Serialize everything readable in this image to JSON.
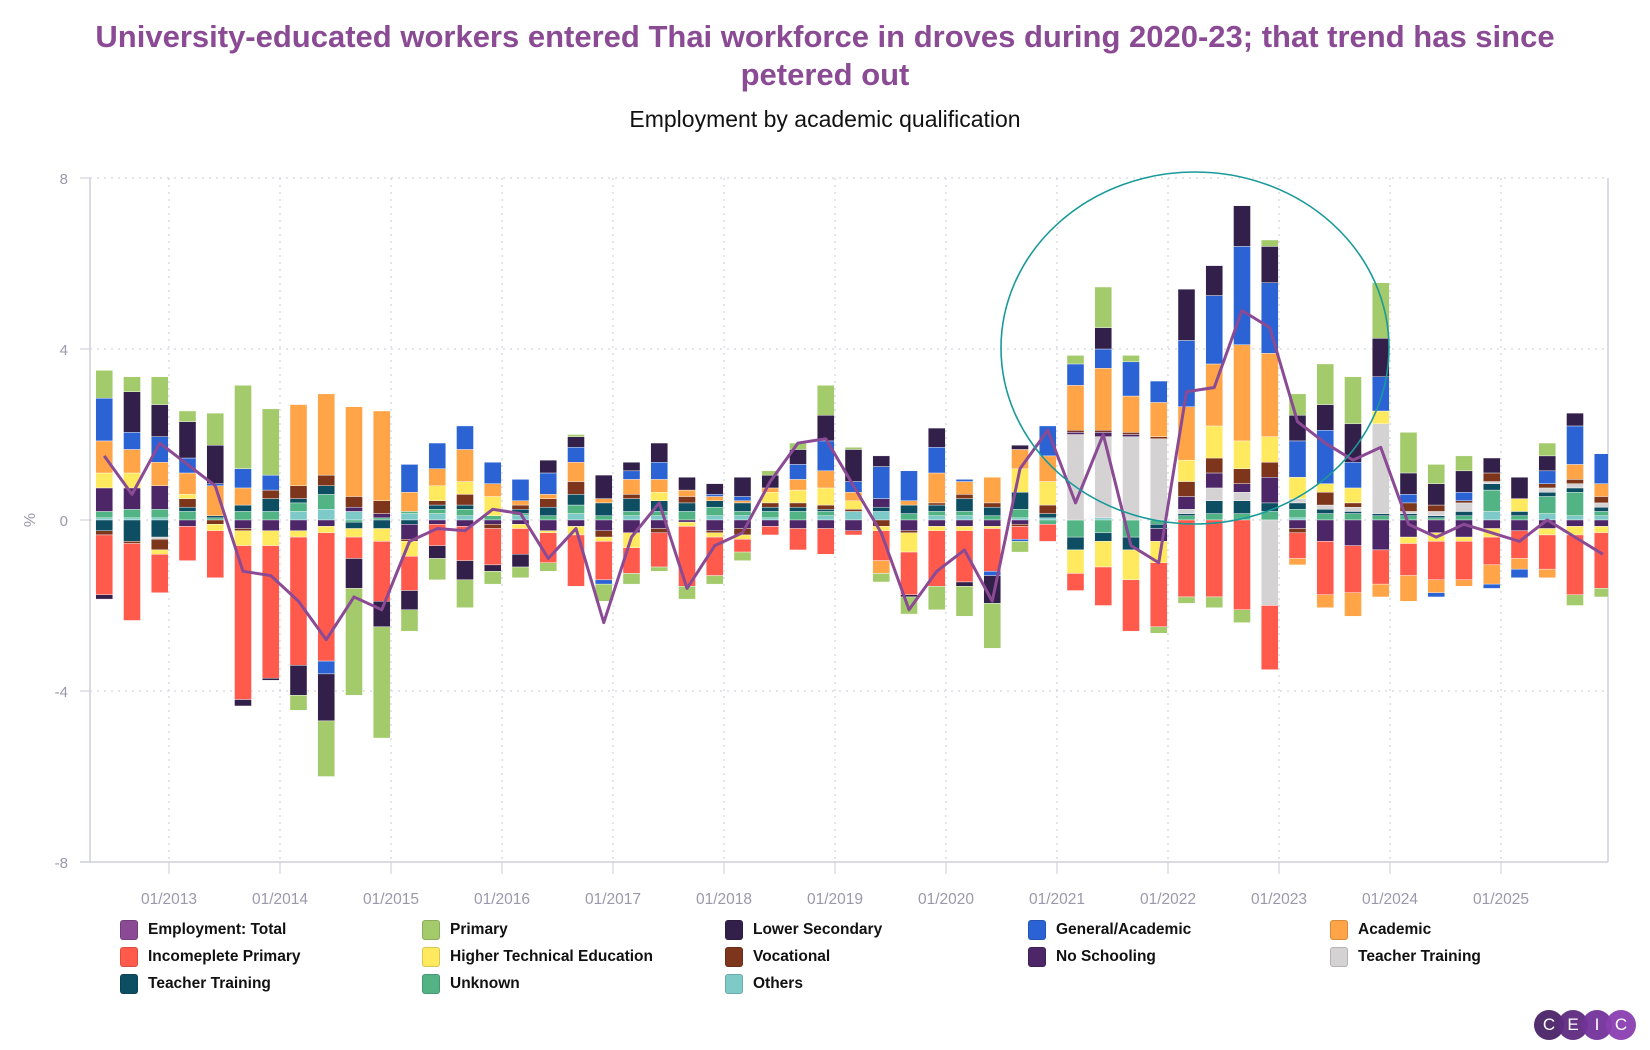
{
  "title": "University-educated workers entered Thai workforce in droves during 2020-23; that trend has since petered out",
  "subtitle": "Employment by academic qualification",
  "logo": [
    "C",
    "E",
    "I",
    "C"
  ],
  "logo_colors": [
    "#4a2468",
    "#5e2b80",
    "#73339a",
    "#8a3fb0"
  ],
  "chart_data": {
    "type": "bar",
    "stacked": true,
    "title": "University-educated workers entered Thai workforce in droves during 2020-23; that trend has since petered out",
    "subtitle": "Employment by academic qualification",
    "xlabel": "",
    "ylabel": "%",
    "ylim": [
      -8,
      8
    ],
    "yticks": [
      8,
      4,
      0,
      -4,
      -8
    ],
    "xtick_labels": [
      "01/2013",
      "01/2014",
      "01/2015",
      "01/2016",
      "01/2017",
      "01/2018",
      "01/2019",
      "01/2020",
      "01/2021",
      "01/2022",
      "01/2023",
      "01/2024",
      "01/2025"
    ],
    "grid": true,
    "legend_position": "bottom",
    "annotation": "circle highlighting 2021-2023 period",
    "annotation_color": "#1a9a9a",
    "categories": [
      "06/2012",
      "09/2012",
      "12/2012",
      "03/2013",
      "06/2013",
      "09/2013",
      "12/2013",
      "03/2014",
      "06/2014",
      "09/2014",
      "12/2014",
      "03/2015",
      "06/2015",
      "09/2015",
      "12/2015",
      "03/2016",
      "06/2016",
      "09/2016",
      "12/2016",
      "03/2017",
      "06/2017",
      "09/2017",
      "12/2017",
      "03/2018",
      "06/2018",
      "09/2018",
      "12/2018",
      "03/2019",
      "06/2019",
      "09/2019",
      "12/2019",
      "03/2020",
      "06/2020",
      "09/2020",
      "12/2020",
      "03/2021",
      "06/2021",
      "09/2021",
      "12/2021",
      "03/2022",
      "06/2022",
      "09/2022",
      "12/2022",
      "03/2023",
      "06/2023",
      "09/2023",
      "12/2023",
      "03/2024",
      "06/2024",
      "09/2024",
      "12/2024",
      "03/2025",
      "06/2025",
      "09/2025",
      "12/2025"
    ],
    "line": {
      "name": "Employment: Total",
      "color": "#8a4a94",
      "values": [
        1.5,
        0.6,
        1.8,
        1.3,
        0.8,
        -1.2,
        -1.3,
        -1.9,
        -2.8,
        -1.8,
        -2.1,
        -0.5,
        -0.2,
        -0.25,
        0.25,
        0.15,
        -0.9,
        -0.2,
        -2.4,
        -0.4,
        0.4,
        -1.6,
        -0.6,
        -0.3,
        0.9,
        1.8,
        1.9,
        0.8,
        -0.3,
        -2.1,
        -1.2,
        -0.7,
        -1.9,
        1.2,
        2.1,
        0.4,
        2.0,
        -0.6,
        -1.0,
        3.0,
        3.1,
        4.9,
        4.5,
        2.3,
        1.8,
        1.4,
        1.7,
        -0.1,
        -0.4,
        -0.1,
        -0.3,
        -0.5,
        0.0,
        -0.4,
        -0.8
      ]
    },
    "series": [
      {
        "name": "Others",
        "color": "#7ecac9",
        "values": [
          0.05,
          0.05,
          0.05,
          0.0,
          0.0,
          0.0,
          0.0,
          0.2,
          0.25,
          0.2,
          0.0,
          0.15,
          0.15,
          0.1,
          0.0,
          0.1,
          0.0,
          0.15,
          0.0,
          0.1,
          0.1,
          0.0,
          0.1,
          0.1,
          0.05,
          0.0,
          0.1,
          0.2,
          0.2,
          0.0,
          0.1,
          0.1,
          0.0,
          0.05,
          0.05,
          0.0,
          0.05,
          0.0,
          0.0,
          0.0,
          0.0,
          0.0,
          0.0,
          0.05,
          0.0,
          0.0,
          0.0,
          0.0,
          0.0,
          0.0,
          0.2,
          0.0,
          0.15,
          0.1,
          0.1
        ]
      },
      {
        "name": "Unknown",
        "color": "#52b384",
        "values": [
          0.15,
          0.2,
          0.2,
          0.2,
          0.05,
          0.2,
          0.2,
          0.2,
          0.35,
          -0.05,
          0.05,
          0.05,
          0.1,
          0.15,
          0.1,
          0.05,
          0.1,
          0.2,
          0.1,
          0.1,
          0.1,
          0.2,
          0.2,
          0.1,
          0.15,
          0.2,
          0.1,
          0.0,
          0.0,
          0.15,
          0.1,
          0.1,
          0.1,
          0.2,
          -0.1,
          -0.4,
          -0.3,
          -0.4,
          -0.1,
          0.1,
          0.15,
          0.15,
          0.2,
          0.2,
          0.15,
          0.15,
          0.1,
          0.1,
          0.05,
          0.1,
          0.5,
          0.1,
          0.4,
          0.55,
          0.1
        ]
      },
      {
        "name": "Teacher Training",
        "color": "#0e4e63",
        "values": [
          -0.25,
          -0.5,
          -0.4,
          0.1,
          0.05,
          0.15,
          0.3,
          0.1,
          0.2,
          -0.15,
          -0.2,
          -0.1,
          0.1,
          0.1,
          0.0,
          0.1,
          0.2,
          0.25,
          0.3,
          0.3,
          0.25,
          0.2,
          0.15,
          0.2,
          0.1,
          0.1,
          0.05,
          0.0,
          0.1,
          0.2,
          0.15,
          0.3,
          0.2,
          0.4,
          0.1,
          -0.3,
          -0.2,
          -0.3,
          -0.1,
          0.05,
          0.3,
          0.3,
          0.2,
          0.15,
          0.1,
          0.05,
          0.05,
          0.05,
          0.05,
          0.1,
          0.15,
          0.1,
          0.1,
          0.1,
          0.1
        ]
      },
      {
        "name": "Teacher Training (2)",
        "legend_name": "Teacher Training",
        "color": "#d4d2d2",
        "values": [
          0.0,
          0.0,
          -0.05,
          0.0,
          0.0,
          0.0,
          0.0,
          0.0,
          0.0,
          0.0,
          0.0,
          0.0,
          0.0,
          0.0,
          0.0,
          0.0,
          0.0,
          0.0,
          0.0,
          0.0,
          0.0,
          0.0,
          0.0,
          0.0,
          0.0,
          0.0,
          0.0,
          0.0,
          0.0,
          0.0,
          0.0,
          0.0,
          0.0,
          0.0,
          0.0,
          2.0,
          1.9,
          1.95,
          1.9,
          0.1,
          0.3,
          0.2,
          -2.0,
          0.1,
          0.1,
          0.1,
          2.1,
          0.05,
          0.1,
          0.2,
          0.05,
          0.0,
          0.1,
          0.1,
          0.1
        ]
      },
      {
        "name": "No Schooling",
        "color": "#4d2667",
        "values": [
          0.55,
          0.5,
          0.55,
          -0.15,
          0.0,
          -0.2,
          -0.25,
          -0.25,
          -0.15,
          0.1,
          0.1,
          -0.35,
          -0.1,
          -0.15,
          -0.1,
          -0.1,
          -0.25,
          -0.15,
          -0.25,
          -0.3,
          -0.2,
          -0.05,
          -0.25,
          -0.2,
          -0.15,
          -0.2,
          -0.2,
          -0.25,
          0.2,
          -0.25,
          -0.15,
          -0.15,
          -0.15,
          -0.1,
          0.0,
          0.05,
          0.1,
          0.05,
          -0.3,
          0.3,
          0.35,
          0.2,
          0.6,
          -0.2,
          -0.5,
          -0.6,
          -0.7,
          -0.4,
          -0.3,
          -0.4,
          -0.2,
          -0.25,
          -0.2,
          -0.15,
          -0.15
        ]
      },
      {
        "name": "Vocational",
        "color": "#7d351c",
        "values": [
          -0.1,
          -0.05,
          -0.25,
          0.2,
          -0.1,
          -0.05,
          0.2,
          0.3,
          0.25,
          0.25,
          0.3,
          -0.05,
          0.1,
          0.25,
          -0.1,
          0.1,
          0.2,
          0.3,
          -0.15,
          0.1,
          -0.1,
          0.15,
          -0.05,
          -0.15,
          0.1,
          0.1,
          0.1,
          0.05,
          -0.15,
          -0.05,
          0.05,
          0.1,
          0.1,
          -0.05,
          0.2,
          0.05,
          0.05,
          0.05,
          0.05,
          0.35,
          0.35,
          0.35,
          0.35,
          -0.1,
          0.3,
          0.1,
          0.0,
          0.2,
          0.15,
          0.05,
          0.2,
          0.0,
          0.1,
          0.1,
          0.15
        ]
      },
      {
        "name": "Higher Technical Education",
        "color": "#ffe95e",
        "values": [
          0.35,
          0.35,
          -0.1,
          0.1,
          -0.15,
          -0.35,
          -0.35,
          -0.15,
          -0.15,
          -0.2,
          -0.3,
          -0.35,
          0.35,
          0.3,
          0.45,
          -0.1,
          -0.05,
          -0.2,
          -0.1,
          -0.35,
          0.2,
          -0.1,
          -0.1,
          -0.1,
          0.25,
          0.3,
          0.4,
          0.2,
          -0.1,
          -0.45,
          -0.1,
          -0.1,
          -0.05,
          0.55,
          0.55,
          -0.55,
          -0.6,
          -0.7,
          -0.5,
          0.5,
          0.75,
          0.65,
          0.6,
          0.5,
          0.2,
          0.35,
          0.3,
          -0.15,
          -0.2,
          -0.1,
          -0.2,
          0.3,
          -0.15,
          -0.2,
          -0.15
        ]
      },
      {
        "name": "Incomeplete Primary",
        "color": "#ff5a4c",
        "values": [
          -1.4,
          -1.8,
          -0.9,
          -0.8,
          -1.1,
          -3.6,
          -3.1,
          -3.0,
          -3.0,
          -0.5,
          -1.4,
          -0.8,
          -0.5,
          -0.8,
          -0.85,
          -0.6,
          -0.7,
          -1.2,
          -0.9,
          -0.6,
          -0.8,
          -1.4,
          -0.9,
          -0.3,
          -0.2,
          -0.5,
          -0.6,
          -0.1,
          -0.7,
          -1.0,
          -1.3,
          -1.2,
          -1.0,
          -0.3,
          -0.4,
          -0.4,
          -0.9,
          -1.2,
          -1.5,
          -1.8,
          -1.8,
          -2.1,
          -1.5,
          -0.6,
          -1.25,
          -1.1,
          -0.8,
          -0.75,
          -0.9,
          -0.9,
          -0.65,
          -0.65,
          -0.8,
          -1.4,
          -1.3
        ]
      },
      {
        "name": "Academic",
        "color": "#ffa447",
        "values": [
          0.75,
          0.55,
          0.55,
          0.5,
          0.7,
          0.4,
          0.0,
          1.9,
          1.9,
          2.1,
          2.1,
          0.45,
          0.4,
          0.75,
          0.3,
          0.1,
          0.1,
          0.45,
          0.1,
          0.35,
          0.3,
          0.15,
          0.1,
          0.05,
          0.1,
          0.25,
          0.4,
          0.2,
          -0.3,
          0.1,
          0.7,
          0.3,
          0.6,
          0.45,
          0.6,
          1.05,
          1.45,
          0.85,
          0.8,
          1.25,
          1.45,
          2.25,
          1.95,
          -0.15,
          -0.3,
          -0.55,
          -0.3,
          -0.6,
          -0.3,
          -0.15,
          -0.45,
          -0.25,
          -0.2,
          0.35,
          0.3
        ]
      },
      {
        "name": "General/Academic",
        "color": "#2b63d4",
        "values": [
          1.0,
          0.4,
          0.6,
          0.35,
          0.05,
          0.45,
          0.35,
          0.0,
          -0.3,
          0.0,
          0.0,
          0.65,
          0.6,
          0.55,
          0.5,
          0.5,
          0.5,
          0.35,
          -0.1,
          0.2,
          0.4,
          0.0,
          0.05,
          0.1,
          0.0,
          0.35,
          0.7,
          0.25,
          0.75,
          0.7,
          0.6,
          0.05,
          -0.1,
          -0.05,
          0.7,
          0.5,
          0.45,
          0.8,
          0.5,
          1.55,
          1.6,
          2.3,
          1.65,
          0.85,
          1.25,
          0.6,
          0.8,
          0.2,
          -0.1,
          0.2,
          -0.1,
          -0.2,
          0.3,
          0.9,
          0.7
        ]
      },
      {
        "name": "Lower Secondary",
        "color": "#33204a",
        "values": [
          -0.1,
          0.95,
          0.75,
          0.85,
          0.9,
          -0.15,
          -0.05,
          -0.7,
          -1.1,
          -0.7,
          -0.6,
          -0.45,
          -0.3,
          -0.45,
          -0.15,
          -0.3,
          0.3,
          0.25,
          0.55,
          0.2,
          0.45,
          0.3,
          0.25,
          0.45,
          0.3,
          0.35,
          0.6,
          0.75,
          0.25,
          -0.05,
          0.45,
          -0.1,
          -0.65,
          0.1,
          0.0,
          0.0,
          0.5,
          0.0,
          0.0,
          1.2,
          0.7,
          0.95,
          0.85,
          0.6,
          0.6,
          0.9,
          0.9,
          0.5,
          0.5,
          0.5,
          0.35,
          0.5,
          0.35,
          0.3,
          0.0
        ]
      },
      {
        "name": "Primary",
        "color": "#a3ca6b",
        "values": [
          0.65,
          0.35,
          0.65,
          0.25,
          0.75,
          1.95,
          1.55,
          -0.35,
          -1.3,
          -2.5,
          -2.6,
          -0.5,
          -0.5,
          -0.65,
          -0.3,
          -0.25,
          -0.2,
          0.05,
          -0.4,
          -0.25,
          -0.1,
          -0.3,
          -0.2,
          -0.2,
          0.1,
          0.15,
          0.7,
          0.05,
          -0.2,
          -0.4,
          -0.55,
          -0.7,
          -1.05,
          -0.25,
          0.0,
          0.2,
          0.95,
          0.15,
          -0.15,
          -0.15,
          -0.25,
          -0.3,
          0.15,
          0.5,
          0.95,
          1.1,
          1.3,
          0.95,
          0.45,
          0.35,
          0.0,
          0.0,
          0.3,
          -0.25,
          -0.2
        ]
      }
    ]
  }
}
